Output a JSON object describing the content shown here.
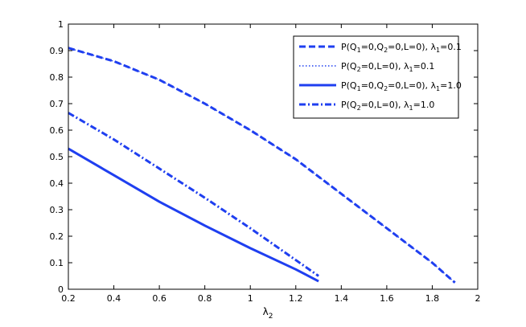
{
  "chart_data": {
    "type": "line",
    "xlabel": "λ",
    "xlabel_sub": "2",
    "ylabel": "",
    "title": "",
    "xlim": [
      0.2,
      2
    ],
    "ylim": [
      0,
      1
    ],
    "xticks": [
      "0.2",
      "0.4",
      "0.6",
      "0.8",
      "1",
      "1.2",
      "1.4",
      "1.6",
      "1.8",
      "2"
    ],
    "yticks": [
      "0",
      "0.1",
      "0.2",
      "0.3",
      "0.4",
      "0.5",
      "0.6",
      "0.7",
      "0.8",
      "0.9",
      "1"
    ],
    "grid": false,
    "legend_position": "top-right",
    "series_color": "#1f3ff0",
    "series": [
      {
        "legend": [
          "P(Q",
          "1",
          "=0,Q",
          "2",
          "=0,L=0), λ",
          "1",
          "=0.1"
        ],
        "style": "dashed",
        "x": [
          0.2,
          0.4,
          0.6,
          0.8,
          1.0,
          1.2,
          1.4,
          1.6,
          1.8,
          1.9
        ],
        "y": [
          0.91,
          0.86,
          0.79,
          0.7,
          0.6,
          0.49,
          0.36,
          0.23,
          0.1,
          0.025
        ]
      },
      {
        "legend": [
          "P(Q",
          "2",
          "=0,L=0), λ",
          "1",
          "=0.1"
        ],
        "style": "dotted",
        "x": [
          0.2,
          0.4,
          0.6,
          0.8,
          1.0,
          1.2,
          1.4,
          1.6,
          1.8,
          1.9
        ],
        "y": [
          0.91,
          0.86,
          0.79,
          0.7,
          0.6,
          0.49,
          0.36,
          0.23,
          0.1,
          0.025
        ]
      },
      {
        "legend": [
          "P(Q",
          "1",
          "=0,Q",
          "2",
          "=0,L=0), λ",
          "1",
          "=1.0"
        ],
        "style": "solid",
        "x": [
          0.2,
          0.4,
          0.6,
          0.8,
          1.0,
          1.2,
          1.3
        ],
        "y": [
          0.53,
          0.43,
          0.33,
          0.24,
          0.155,
          0.075,
          0.03
        ]
      },
      {
        "legend": [
          "P(Q",
          "2",
          "=0,L=0), λ",
          "1",
          "=1.0"
        ],
        "style": "dashdot",
        "x": [
          0.2,
          0.4,
          0.6,
          0.8,
          1.0,
          1.2,
          1.3
        ],
        "y": [
          0.665,
          0.565,
          0.455,
          0.345,
          0.23,
          0.11,
          0.05
        ]
      }
    ]
  }
}
